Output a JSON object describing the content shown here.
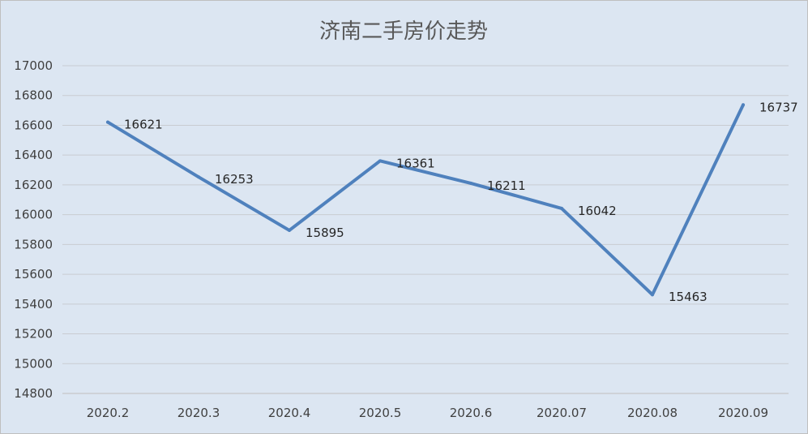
{
  "chart_data": {
    "type": "line",
    "title": "济南二手房价走势",
    "xlabel": "",
    "ylabel": "",
    "categories": [
      "2020.2",
      "2020.3",
      "2020.4",
      "2020.5",
      "2020.6",
      "2020.07",
      "2020.08",
      "2020.09"
    ],
    "series": [
      {
        "values": [
          16621,
          16253,
          15895,
          16361,
          16211,
          16042,
          15463,
          16737
        ]
      }
    ],
    "data_labels": [
      "16621",
      "16253",
      "15895",
      "16361",
      "16211",
      "16042",
      "15463",
      "16737"
    ],
    "ylim": [
      14800,
      17000
    ],
    "yticks": [
      "14800",
      "15000",
      "15200",
      "15400",
      "15600",
      "15800",
      "16000",
      "16200",
      "16400",
      "16600",
      "16800",
      "17000"
    ],
    "grid": true,
    "legend": "none",
    "colors": {
      "background": "#dce6f2",
      "line": "#4f81bd",
      "grid": "#c9ccd1"
    }
  }
}
